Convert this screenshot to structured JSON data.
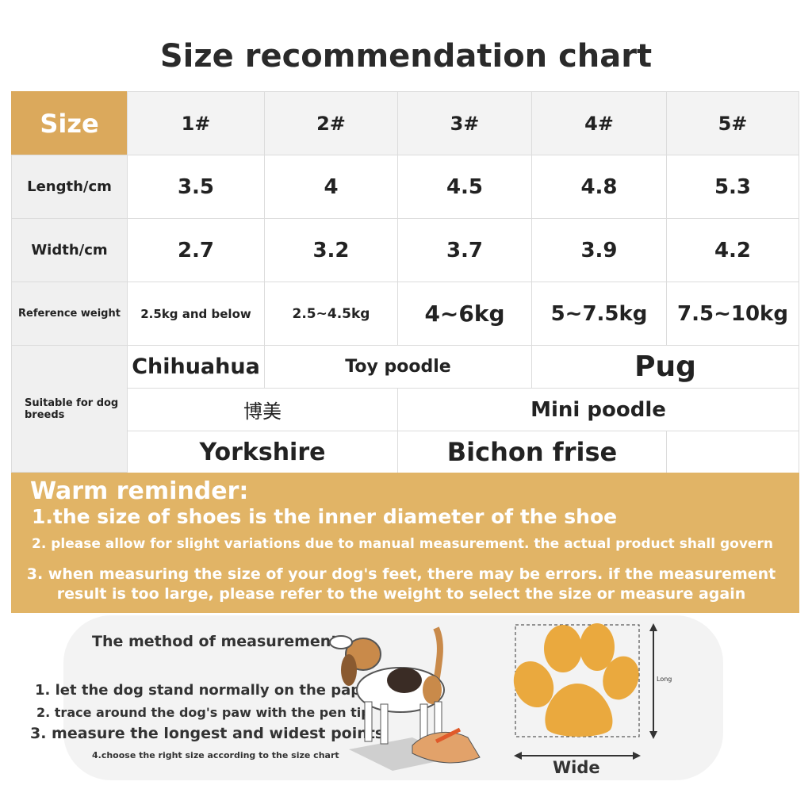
{
  "title": "Size recommendation chart",
  "table": {
    "header": [
      "Size",
      "1#",
      "2#",
      "3#",
      "4#",
      "5#"
    ],
    "rows": [
      [
        "Length/cm",
        "3.5",
        "4",
        "4.5",
        "4.8",
        "5.3"
      ],
      [
        "Width/cm",
        "2.7",
        "3.2",
        "3.7",
        "3.9",
        "4.2"
      ],
      [
        "Reference weight",
        "2.5kg and below",
        "2.5~4.5kg",
        "4~6kg",
        "5~7.5kg",
        "7.5~10kg"
      ]
    ],
    "breeds_label": "Suitable for dog breeds",
    "breeds": [
      [
        "Chihuahua",
        "Toy poodle",
        "Pug"
      ],
      [
        "博美",
        "Mini poodle"
      ],
      [
        "Yorkshire",
        "Bichon frise"
      ]
    ]
  },
  "reminder": {
    "title": "Warm reminder:",
    "lines": [
      "1.the size of shoes is the inner diameter of the shoe",
      "2. please allow for slight variations due to manual measurement. the actual product shall govern",
      "3. when measuring the size of your dog's feet, there may be errors. if the measurement result is too large, please refer to the weight to select the size or measure again"
    ]
  },
  "method": {
    "title": "The method of measurement",
    "steps": [
      "1. let the dog stand normally on the paper",
      "2. trace around the dog's paw with the pen tip",
      "3. measure the longest and widest points",
      "4.choose the right size according to the size chart"
    ],
    "long_label": "Long",
    "wide_label": "Wide"
  }
}
